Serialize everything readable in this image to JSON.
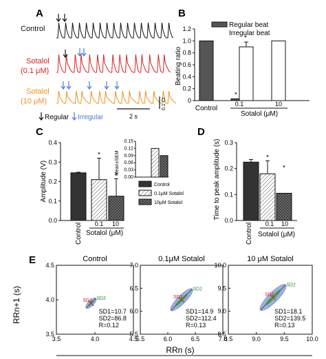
{
  "panel_a": {
    "letter": "A",
    "labels": [
      {
        "text": "Control",
        "color": "#111111"
      },
      {
        "text": "Sotalol",
        "color": "#d62020"
      },
      {
        "text": "(0.1 μM)",
        "color": "#d62020"
      },
      {
        "text": "Sotalol",
        "color": "#f0901e"
      },
      {
        "text": "(10 μM)",
        "color": "#f0901e"
      }
    ],
    "scale_time": "2 s",
    "scale_amp": "0.1 CI",
    "legend_regular": "Regular",
    "legend_irregular": "Irregular",
    "colors": {
      "control": "#111111",
      "low": "#d62020",
      "high": "#f0901e",
      "regular_arrow": "#111111",
      "irregular_arrow": "#4a78d8"
    }
  },
  "chart_data": [
    {
      "panel": "B",
      "type": "bar",
      "ylabel": "Beating ratio",
      "ylim": [
        0,
        1.2
      ],
      "yticks": [
        "0",
        "0.2",
        "0.4",
        "0.6",
        "0.8",
        "1.0",
        "1.2"
      ],
      "categories": [
        "Control",
        "0.1",
        "10"
      ],
      "group_label": "Sotalol (μM)",
      "xlabel_control": "Control",
      "series": [
        {
          "name": "Regular beat",
          "values": [
            1.0,
            0.03,
            0
          ],
          "color": "#555555"
        },
        {
          "name": "Irregular beat",
          "values": [
            0,
            0.9,
            1.0
          ],
          "color": "#ffffff"
        }
      ],
      "errors": [
        0,
        0.08,
        0
      ],
      "stars": [
        "*",
        "*"
      ]
    },
    {
      "panel": "C",
      "type": "bar",
      "ylabel": "Amplitude (V)",
      "ylim": [
        0,
        0.4
      ],
      "yticks": [
        "0.0",
        "0.1",
        "0.2",
        "0.3",
        "0.4"
      ],
      "categories": [
        "Control",
        "0.1",
        "10"
      ],
      "group_label": "Sotalol (μM)",
      "values": [
        0.245,
        0.21,
        0.125
      ],
      "errors": [
        0.003,
        0.11,
        0.09
      ],
      "stars": [
        "*",
        "*"
      ],
      "inset": {
        "ylabel": "Mean±SEM",
        "yticks": [
          "0.15",
          "0.12",
          "0.09",
          "0.06",
          "0.03",
          "0.00"
        ],
        "ylim": [
          0,
          0.15
        ],
        "values": [
          0,
          0.12,
          0.09
        ]
      },
      "legend": [
        "Control",
        "0.1μM Sotalol",
        "10μM Sotalol"
      ]
    },
    {
      "panel": "D",
      "type": "bar",
      "ylabel": "Time to peak amplitude (s)",
      "ylim": [
        0,
        0.3
      ],
      "yticks": [
        "0.0",
        "0.1",
        "0.2",
        "0.3"
      ],
      "categories": [
        "Control",
        "0.1",
        "10"
      ],
      "group_label": "Sotalol (μM)",
      "values": [
        0.225,
        0.18,
        0.105
      ],
      "errors": [
        0.01,
        0.05,
        0
      ],
      "stars": [
        "*",
        "*"
      ]
    },
    {
      "panel": "E",
      "type": "scatter",
      "ylabel": "RRn+1 (s)",
      "xlabel": "RRn (s)",
      "plots": [
        {
          "title": "Control",
          "xticks": [
            "3.5",
            "4.0",
            "4.5"
          ],
          "xlim": [
            3.5,
            4.5
          ],
          "yticks": [
            "3.5",
            "4.0",
            "4.5"
          ],
          "ylim": [
            3.5,
            4.5
          ],
          "center": [
            3.95,
            3.95
          ],
          "sd1_label": "SD1=10.7",
          "sd2_label": "SD2=86.8",
          "r_label": "R=0.12"
        },
        {
          "title": "0.1μM Sotalol",
          "xticks": [
            "5.5",
            "6.0",
            "6.5",
            "7.0"
          ],
          "xlim": [
            5.5,
            7.0
          ],
          "yticks": [
            "5.5",
            "6.0",
            "6.5",
            "7.0"
          ],
          "ylim": [
            5.5,
            7.0
          ],
          "center": [
            6.25,
            6.25
          ],
          "sd1_label": "SD1=14.9",
          "sd2_label": "SD2=112.4",
          "r_label": "R=0.13"
        },
        {
          "title": "10 μM Sotalol",
          "xticks": [
            "8.5",
            "9.0",
            "9.5",
            "10.0"
          ],
          "xlim": [
            8.5,
            10.0
          ],
          "yticks": [
            "8.5",
            "9.0",
            "9.5",
            "10.0"
          ],
          "ylim": [
            8.5,
            10.0
          ],
          "center": [
            9.3,
            9.3
          ],
          "sd1_label": "SD1=18.1",
          "sd2_label": "SD2=139.5",
          "r_label": "R=0.13"
        }
      ],
      "sd1_tag": "SD1",
      "sd2_tag": "SD2"
    }
  ]
}
